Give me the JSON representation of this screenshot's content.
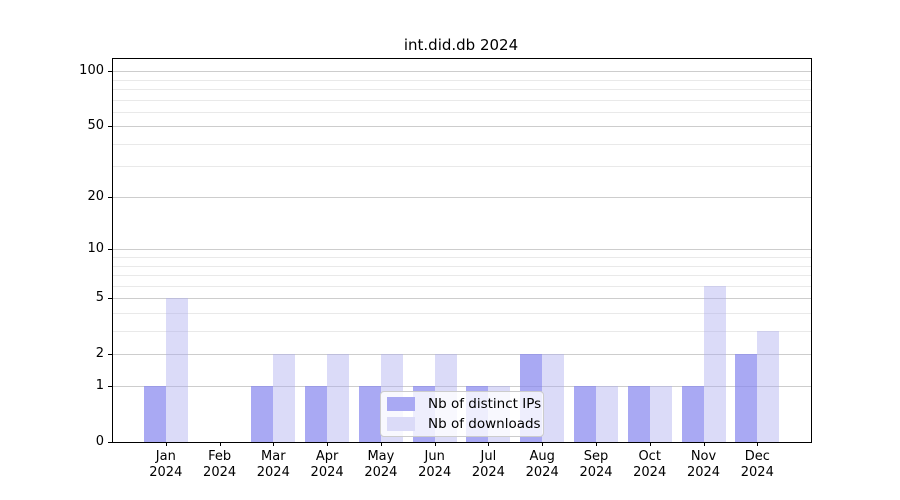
{
  "chart_data": {
    "type": "bar",
    "title": "int.did.db 2024",
    "categories": [
      "Jan",
      "Feb",
      "Mar",
      "Apr",
      "May",
      "Jun",
      "Jul",
      "Aug",
      "Sep",
      "Oct",
      "Nov",
      "Dec"
    ],
    "year_label": "2024",
    "series": [
      {
        "name": "Nb of distinct IPs",
        "color": "#a9a9f3",
        "fill": "rgba(136,136,238,0.72)",
        "values": [
          1,
          0,
          1,
          1,
          1,
          1,
          1,
          2,
          1,
          1,
          1,
          2
        ]
      },
      {
        "name": "Nb of downloads",
        "color": "#dbdbf8",
        "fill": "rgba(170,170,238,0.42)",
        "values": [
          5,
          0,
          2,
          2,
          2,
          2,
          1,
          2,
          1,
          1,
          6,
          3
        ]
      }
    ],
    "y_axis": {
      "scale": "log10(value+1)",
      "major_ticks": [
        0,
        1,
        2,
        5,
        10,
        20,
        50,
        100
      ],
      "minor_ticks": [
        3,
        4,
        6,
        7,
        8,
        9,
        30,
        40,
        60,
        70,
        80,
        90
      ],
      "range_top": 117
    },
    "legend": {
      "position": "lower-center"
    },
    "grid": "on",
    "colors": {
      "grid_major": "#cdcdcd",
      "grid_minor": "#e9e9e9",
      "spine": "#000000",
      "text": "#000000",
      "background": "#ffffff"
    }
  }
}
